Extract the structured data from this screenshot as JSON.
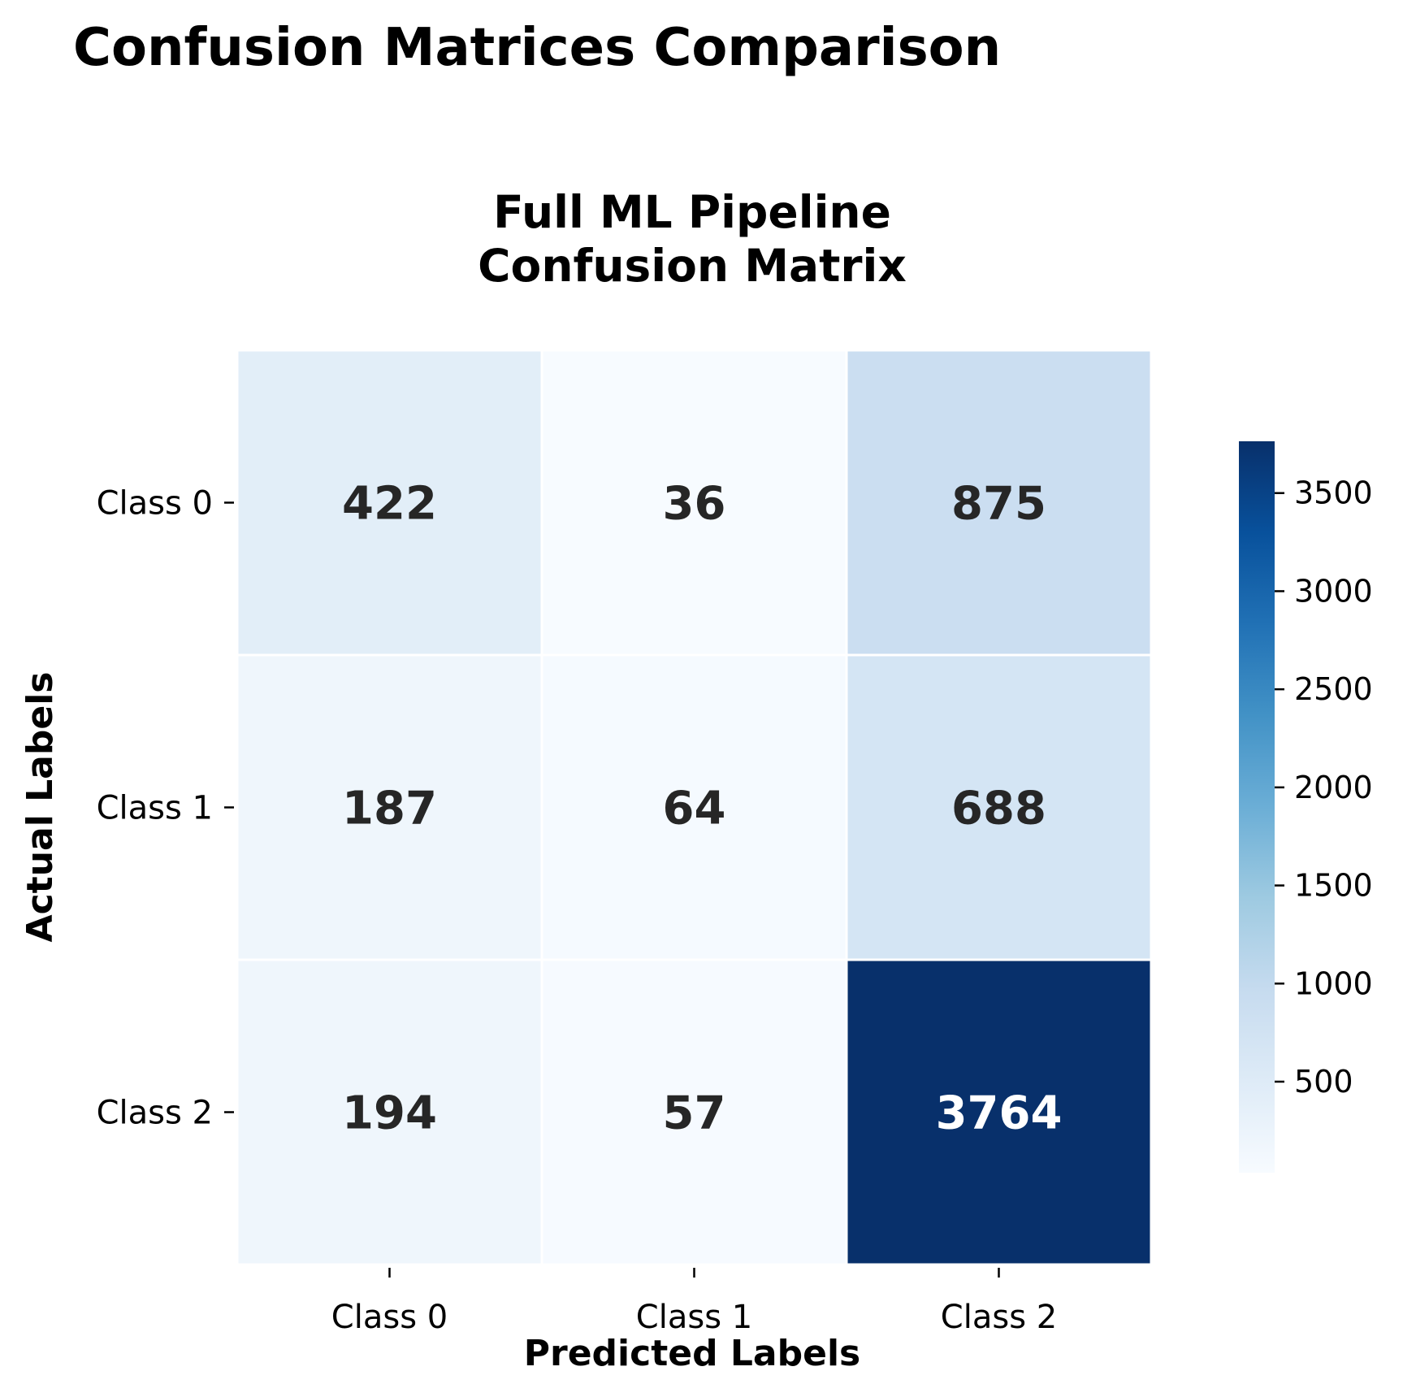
{
  "figure": {
    "suptitle": "Confusion Matrices Comparison"
  },
  "chart_data": {
    "type": "heatmap",
    "title_lines": [
      "Full ML Pipeline",
      "Confusion Matrix"
    ],
    "xlabel": "Predicted Labels",
    "ylabel": "Actual Labels",
    "x_categories": [
      "Class 0",
      "Class 1",
      "Class 2"
    ],
    "y_categories": [
      "Class 0",
      "Class 1",
      "Class 2"
    ],
    "values": [
      [
        422,
        36,
        875
      ],
      [
        187,
        64,
        688
      ],
      [
        194,
        57,
        3764
      ]
    ],
    "colormap": "Blues",
    "color_stops": [
      "#f7fbff",
      "#deebf7",
      "#c6dbef",
      "#9ecae1",
      "#6baed6",
      "#4292c6",
      "#2171b5",
      "#08519c",
      "#08306b"
    ],
    "vmin": 36,
    "vmax": 3764,
    "colorbar": {
      "ticks": [
        500,
        1000,
        1500,
        2000,
        2500,
        3000,
        3500
      ],
      "tick_labels": [
        "500",
        "1000",
        "1500",
        "2000",
        "2500",
        "3000",
        "3500"
      ]
    },
    "annotation_colors": {
      "dark": "#262626",
      "light": "#ffffff"
    },
    "grid": false
  }
}
